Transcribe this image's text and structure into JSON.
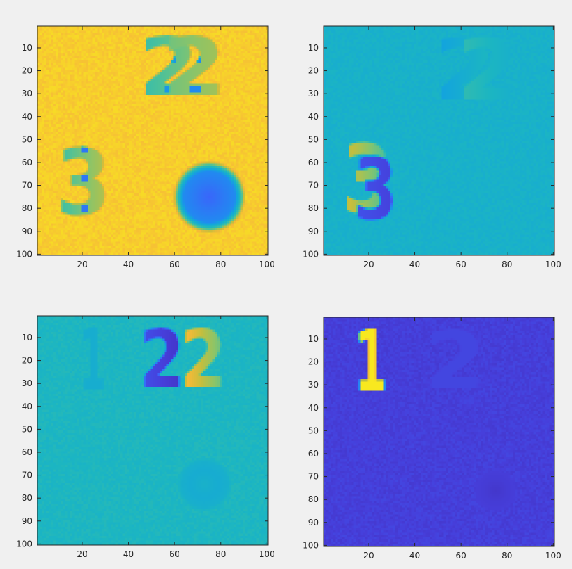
{
  "figure": {
    "background": "#f0f0f0"
  },
  "chart_data": [
    {
      "type": "heatmap",
      "title": "",
      "xlabel": "",
      "ylabel": "",
      "xlim": [
        0.5,
        100.5
      ],
      "ylim": [
        0.5,
        100.5
      ],
      "y_direction": "reverse",
      "xticks": [
        20,
        40,
        60,
        80,
        100
      ],
      "yticks": [
        10,
        20,
        30,
        40,
        50,
        60,
        70,
        80,
        90,
        100
      ],
      "colormap": "parula",
      "background_level": 0.93,
      "noise": 0.02,
      "shapes": [
        {
          "kind": "digit",
          "label": "2",
          "x_range": [
            44,
            70
          ],
          "y_range": [
            8,
            36
          ],
          "pattern": "horizontal-gradient",
          "from": 0.55,
          "to": 0.7,
          "center_dark": 0.35
        },
        {
          "kind": "digit",
          "label": "2",
          "x_range": [
            54,
            82
          ],
          "y_range": [
            8,
            36
          ],
          "pattern": "horizontal-gradient",
          "from": 0.65,
          "to": 0.75,
          "center_dark": 0.3
        },
        {
          "kind": "digit",
          "label": "3",
          "x_range": [
            8,
            32
          ],
          "y_range": [
            57,
            88
          ],
          "pattern": "horizontal-gradient",
          "from": 0.55,
          "to": 0.8,
          "center_dark": 0.25
        },
        {
          "kind": "ring",
          "center": [
            75,
            75
          ],
          "radii": [
            0,
            11,
            16
          ],
          "levels": [
            0.2,
            0.3,
            0.8
          ]
        }
      ]
    },
    {
      "type": "heatmap",
      "title": "",
      "xlabel": "",
      "ylabel": "",
      "xlim": [
        0.5,
        100.5
      ],
      "ylim": [
        0.5,
        100.5
      ],
      "y_direction": "reverse",
      "xticks": [
        20,
        40,
        60,
        80,
        100
      ],
      "yticks": [
        10,
        20,
        30,
        40,
        50,
        60,
        70,
        80,
        90,
        100
      ],
      "colormap": "parula",
      "background_level": 0.47,
      "noise": 0.02,
      "shapes": [
        {
          "kind": "digit",
          "label": "2",
          "x_range": [
            48,
            74
          ],
          "y_range": [
            8,
            38
          ],
          "pattern": "horizontal-gradient",
          "from": 0.38,
          "to": 0.52
        },
        {
          "kind": "digit",
          "label": "2",
          "x_range": [
            58,
            84
          ],
          "y_range": [
            8,
            38
          ],
          "pattern": "horizontal-gradient",
          "from": 0.55,
          "to": 0.45
        },
        {
          "kind": "digit",
          "label": "3",
          "x_range": [
            8,
            30
          ],
          "y_range": [
            55,
            87
          ],
          "pattern": "horizontal-gradient",
          "from": 0.85,
          "to": 0.55
        },
        {
          "kind": "digit",
          "label": "3",
          "x_range": [
            13,
            32
          ],
          "y_range": [
            60,
            90
          ],
          "pattern": "horizontal-gradient",
          "from": 0.15,
          "to": 0.1
        }
      ]
    },
    {
      "type": "heatmap",
      "title": "",
      "xlabel": "",
      "ylabel": "",
      "xlim": [
        0.5,
        100.5
      ],
      "ylim": [
        0.5,
        100.5
      ],
      "y_direction": "reverse",
      "xticks": [
        20,
        40,
        60,
        80,
        100
      ],
      "yticks": [
        10,
        20,
        30,
        40,
        50,
        60,
        70,
        80,
        90,
        100
      ],
      "colormap": "parula",
      "background_level": 0.5,
      "noise": 0.02,
      "shapes": [
        {
          "kind": "digit",
          "label": "1",
          "x_range": [
            18,
            30
          ],
          "y_range": [
            8,
            38
          ],
          "pattern": "solid",
          "from": 0.45,
          "to": 0.45
        },
        {
          "kind": "digit",
          "label": "2",
          "x_range": [
            44,
            64
          ],
          "y_range": [
            8,
            37
          ],
          "pattern": "horizontal-gradient",
          "from": 0.15,
          "to": 0.05
        },
        {
          "kind": "digit",
          "label": "2",
          "x_range": [
            62,
            82
          ],
          "y_range": [
            8,
            37
          ],
          "pattern": "horizontal-gradient",
          "from": 0.95,
          "to": 0.6
        },
        {
          "kind": "ring",
          "center": [
            73,
            74
          ],
          "radii": [
            0,
            6,
            12
          ],
          "levels": [
            0.47,
            0.44,
            0.47
          ]
        }
      ]
    },
    {
      "type": "heatmap",
      "title": "",
      "xlabel": "",
      "ylabel": "",
      "xlim": [
        0.5,
        100.5
      ],
      "ylim": [
        0.5,
        100.5
      ],
      "y_direction": "reverse",
      "xticks": [
        20,
        40,
        60,
        80,
        100
      ],
      "yticks": [
        10,
        20,
        30,
        40,
        50,
        60,
        70,
        80,
        90,
        100
      ],
      "colormap": "parula",
      "background_level": 0.1,
      "noise": 0.02,
      "shapes": [
        {
          "kind": "digit",
          "label": "1",
          "x_range": [
            13,
            28
          ],
          "y_range": [
            8,
            38
          ],
          "pattern": "solid",
          "from": 0.97,
          "to": 0.97,
          "edge": 0.45
        },
        {
          "kind": "digit",
          "label": "2",
          "x_range": [
            44,
            70
          ],
          "y_range": [
            8,
            37
          ],
          "pattern": "solid",
          "from": 0.12,
          "to": 0.12
        },
        {
          "kind": "ring",
          "center": [
            75,
            76
          ],
          "radii": [
            0,
            5,
            10
          ],
          "levels": [
            0.07,
            0.09,
            0.1
          ]
        }
      ]
    }
  ]
}
